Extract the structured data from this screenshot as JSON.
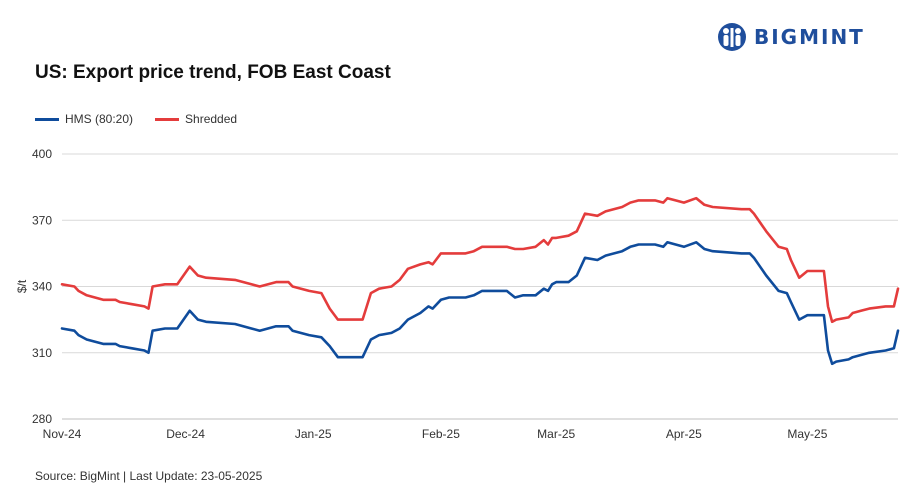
{
  "brand": {
    "name": "BIGMINT"
  },
  "source_text": "Source: BigMint | Last Update: 23-05-2025",
  "colors": {
    "hms": "#0f4c9c",
    "shredded": "#e43c3c",
    "grid": "#d9d9d9",
    "brand": "#1f4e9c"
  },
  "chart_data": {
    "type": "line",
    "title": "US: Export price trend, FOB East Coast",
    "ylabel": "$/t",
    "xlabel": "",
    "ylim": [
      280,
      400
    ],
    "yticks": [
      280,
      310,
      340,
      370,
      400
    ],
    "grid": true,
    "legend_position": "top-left",
    "xrange": [
      "2024-11-01",
      "2025-05-23"
    ],
    "xticks": [
      {
        "label": "Nov-24",
        "date": "2024-11-01"
      },
      {
        "label": "Dec-24",
        "date": "2024-12-01"
      },
      {
        "label": "Jan-25",
        "date": "2025-01-01"
      },
      {
        "label": "Feb-25",
        "date": "2025-02-01"
      },
      {
        "label": "Mar-25",
        "date": "2025-03-01"
      },
      {
        "label": "Apr-25",
        "date": "2025-04-01"
      },
      {
        "label": "May-25",
        "date": "2025-05-01"
      }
    ],
    "series": [
      {
        "name": "HMS (80:20)",
        "color": "#0f4c9c",
        "points": [
          [
            "2024-11-01",
            321
          ],
          [
            "2024-11-04",
            320
          ],
          [
            "2024-11-05",
            318
          ],
          [
            "2024-11-07",
            316
          ],
          [
            "2024-11-11",
            314
          ],
          [
            "2024-11-14",
            314
          ],
          [
            "2024-11-15",
            313
          ],
          [
            "2024-11-18",
            312
          ],
          [
            "2024-11-21",
            311
          ],
          [
            "2024-11-22",
            310
          ],
          [
            "2024-11-23",
            320
          ],
          [
            "2024-11-26",
            321
          ],
          [
            "2024-11-29",
            321
          ],
          [
            "2024-12-02",
            329
          ],
          [
            "2024-12-04",
            325
          ],
          [
            "2024-12-06",
            324
          ],
          [
            "2024-12-13",
            323
          ],
          [
            "2024-12-17",
            321
          ],
          [
            "2024-12-19",
            320
          ],
          [
            "2024-12-23",
            322
          ],
          [
            "2024-12-26",
            322
          ],
          [
            "2024-12-27",
            320
          ],
          [
            "2024-12-31",
            318
          ],
          [
            "2025-01-03",
            317
          ],
          [
            "2025-01-05",
            313
          ],
          [
            "2025-01-07",
            308
          ],
          [
            "2025-01-13",
            308
          ],
          [
            "2025-01-15",
            316
          ],
          [
            "2025-01-17",
            318
          ],
          [
            "2025-01-20",
            319
          ],
          [
            "2025-01-22",
            321
          ],
          [
            "2025-01-24",
            325
          ],
          [
            "2025-01-27",
            328
          ],
          [
            "2025-01-29",
            331
          ],
          [
            "2025-01-30",
            330
          ],
          [
            "2025-02-01",
            334
          ],
          [
            "2025-02-03",
            335
          ],
          [
            "2025-02-07",
            335
          ],
          [
            "2025-02-09",
            336
          ],
          [
            "2025-02-11",
            338
          ],
          [
            "2025-02-14",
            338
          ],
          [
            "2025-02-17",
            338
          ],
          [
            "2025-02-19",
            335
          ],
          [
            "2025-02-21",
            336
          ],
          [
            "2025-02-24",
            336
          ],
          [
            "2025-02-26",
            339
          ],
          [
            "2025-02-27",
            338
          ],
          [
            "2025-02-28",
            341
          ],
          [
            "2025-03-01",
            342
          ],
          [
            "2025-03-04",
            342
          ],
          [
            "2025-03-06",
            345
          ],
          [
            "2025-03-08",
            353
          ],
          [
            "2025-03-11",
            352
          ],
          [
            "2025-03-13",
            354
          ],
          [
            "2025-03-17",
            356
          ],
          [
            "2025-03-19",
            358
          ],
          [
            "2025-03-21",
            359
          ],
          [
            "2025-03-25",
            359
          ],
          [
            "2025-03-27",
            358
          ],
          [
            "2025-03-28",
            360
          ],
          [
            "2025-03-30",
            359
          ],
          [
            "2025-04-01",
            358
          ],
          [
            "2025-04-04",
            360
          ],
          [
            "2025-04-06",
            357
          ],
          [
            "2025-04-08",
            356
          ],
          [
            "2025-04-15",
            355
          ],
          [
            "2025-04-17",
            355
          ],
          [
            "2025-04-18",
            353
          ],
          [
            "2025-04-21",
            345
          ],
          [
            "2025-04-24",
            338
          ],
          [
            "2025-04-26",
            337
          ],
          [
            "2025-04-27",
            333
          ],
          [
            "2025-04-29",
            325
          ],
          [
            "2025-05-01",
            327
          ],
          [
            "2025-05-05",
            327
          ],
          [
            "2025-05-06",
            311
          ],
          [
            "2025-05-07",
            305
          ],
          [
            "2025-05-08",
            306
          ],
          [
            "2025-05-11",
            307
          ],
          [
            "2025-05-12",
            308
          ],
          [
            "2025-05-14",
            309
          ],
          [
            "2025-05-16",
            310
          ],
          [
            "2025-05-20",
            311
          ],
          [
            "2025-05-22",
            312
          ],
          [
            "2025-05-23",
            320
          ]
        ]
      },
      {
        "name": "Shredded",
        "color": "#e43c3c",
        "points": [
          [
            "2024-11-01",
            341
          ],
          [
            "2024-11-04",
            340
          ],
          [
            "2024-11-05",
            338
          ],
          [
            "2024-11-07",
            336
          ],
          [
            "2024-11-11",
            334
          ],
          [
            "2024-11-14",
            334
          ],
          [
            "2024-11-15",
            333
          ],
          [
            "2024-11-18",
            332
          ],
          [
            "2024-11-21",
            331
          ],
          [
            "2024-11-22",
            330
          ],
          [
            "2024-11-23",
            340
          ],
          [
            "2024-11-26",
            341
          ],
          [
            "2024-11-29",
            341
          ],
          [
            "2024-12-02",
            349
          ],
          [
            "2024-12-04",
            345
          ],
          [
            "2024-12-06",
            344
          ],
          [
            "2024-12-13",
            343
          ],
          [
            "2024-12-17",
            341
          ],
          [
            "2024-12-19",
            340
          ],
          [
            "2024-12-23",
            342
          ],
          [
            "2024-12-26",
            342
          ],
          [
            "2024-12-27",
            340
          ],
          [
            "2024-12-31",
            338
          ],
          [
            "2025-01-03",
            337
          ],
          [
            "2025-01-05",
            330
          ],
          [
            "2025-01-07",
            325
          ],
          [
            "2025-01-13",
            325
          ],
          [
            "2025-01-15",
            337
          ],
          [
            "2025-01-17",
            339
          ],
          [
            "2025-01-20",
            340
          ],
          [
            "2025-01-22",
            343
          ],
          [
            "2025-01-24",
            348
          ],
          [
            "2025-01-27",
            350
          ],
          [
            "2025-01-29",
            351
          ],
          [
            "2025-01-30",
            350
          ],
          [
            "2025-02-01",
            355
          ],
          [
            "2025-02-03",
            355
          ],
          [
            "2025-02-07",
            355
          ],
          [
            "2025-02-09",
            356
          ],
          [
            "2025-02-11",
            358
          ],
          [
            "2025-02-14",
            358
          ],
          [
            "2025-02-17",
            358
          ],
          [
            "2025-02-19",
            357
          ],
          [
            "2025-02-21",
            357
          ],
          [
            "2025-02-24",
            358
          ],
          [
            "2025-02-26",
            361
          ],
          [
            "2025-02-27",
            359
          ],
          [
            "2025-02-28",
            362
          ],
          [
            "2025-03-01",
            362
          ],
          [
            "2025-03-04",
            363
          ],
          [
            "2025-03-06",
            365
          ],
          [
            "2025-03-08",
            373
          ],
          [
            "2025-03-11",
            372
          ],
          [
            "2025-03-13",
            374
          ],
          [
            "2025-03-17",
            376
          ],
          [
            "2025-03-19",
            378
          ],
          [
            "2025-03-21",
            379
          ],
          [
            "2025-03-25",
            379
          ],
          [
            "2025-03-27",
            378
          ],
          [
            "2025-03-28",
            380
          ],
          [
            "2025-03-30",
            379
          ],
          [
            "2025-04-01",
            378
          ],
          [
            "2025-04-04",
            380
          ],
          [
            "2025-04-06",
            377
          ],
          [
            "2025-04-08",
            376
          ],
          [
            "2025-04-15",
            375
          ],
          [
            "2025-04-17",
            375
          ],
          [
            "2025-04-18",
            373
          ],
          [
            "2025-04-21",
            365
          ],
          [
            "2025-04-24",
            358
          ],
          [
            "2025-04-26",
            357
          ],
          [
            "2025-04-27",
            352
          ],
          [
            "2025-04-29",
            344
          ],
          [
            "2025-05-01",
            347
          ],
          [
            "2025-05-05",
            347
          ],
          [
            "2025-05-06",
            331
          ],
          [
            "2025-05-07",
            324
          ],
          [
            "2025-05-08",
            325
          ],
          [
            "2025-05-11",
            326
          ],
          [
            "2025-05-12",
            328
          ],
          [
            "2025-05-14",
            329
          ],
          [
            "2025-05-16",
            330
          ],
          [
            "2025-05-20",
            331
          ],
          [
            "2025-05-22",
            331
          ],
          [
            "2025-05-23",
            339
          ]
        ]
      }
    ]
  }
}
